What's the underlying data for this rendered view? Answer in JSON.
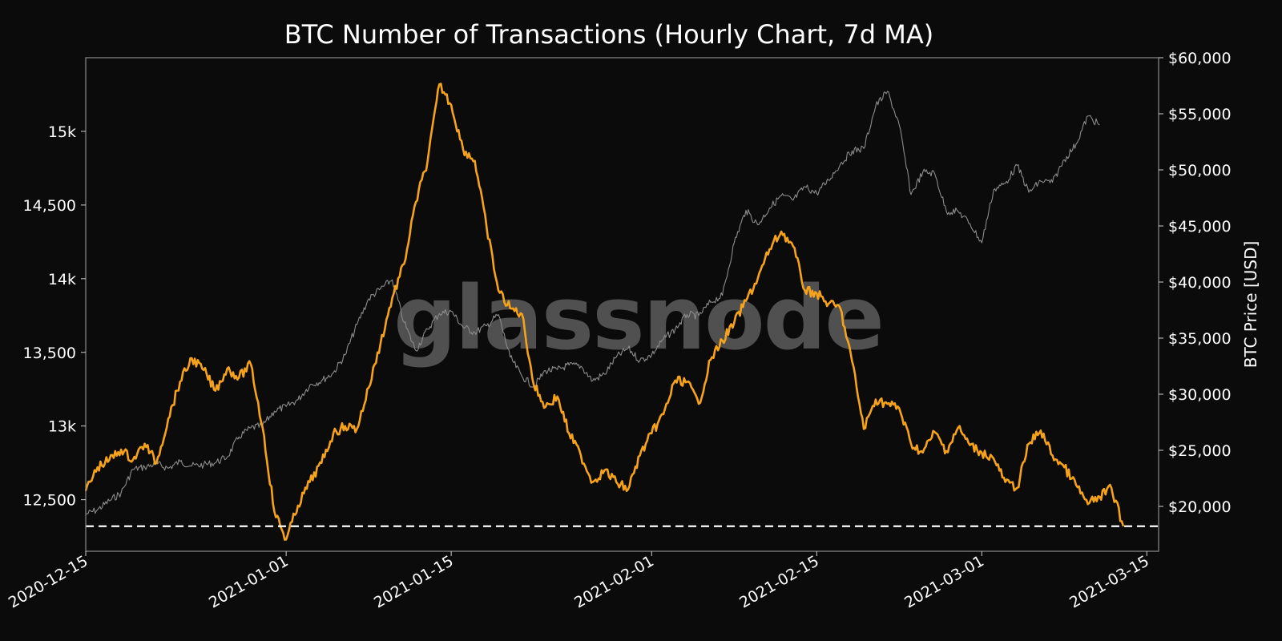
{
  "chart_data": {
    "type": "line",
    "title": "BTC Number of Transactions (Hourly Chart, 7d MA)",
    "watermark": "glassnode",
    "xlabel": "",
    "ylabel_left": "",
    "ylabel_right": "BTC Price [USD]",
    "x_ticks": [
      "2020-12-15",
      "2021-01-01",
      "2021-01-15",
      "2021-02-01",
      "2021-02-15",
      "2021-03-01",
      "2021-03-15"
    ],
    "x_range": [
      "2020-12-15",
      "2021-03-16"
    ],
    "y_left_ticks": [
      {
        "value": 12500,
        "label": "12,500"
      },
      {
        "value": 13000,
        "label": "13k"
      },
      {
        "value": 13500,
        "label": "13,500"
      },
      {
        "value": 14000,
        "label": "14k"
      },
      {
        "value": 14500,
        "label": "14,500"
      },
      {
        "value": 15000,
        "label": "15k"
      }
    ],
    "y_left_range": [
      12150,
      15500
    ],
    "y_right_ticks": [
      {
        "value": 20000,
        "label": "$20,000"
      },
      {
        "value": 25000,
        "label": "$25,000"
      },
      {
        "value": 30000,
        "label": "$30,000"
      },
      {
        "value": 35000,
        "label": "$35,000"
      },
      {
        "value": 40000,
        "label": "$40,000"
      },
      {
        "value": 45000,
        "label": "$45,000"
      },
      {
        "value": 50000,
        "label": "$50,000"
      },
      {
        "value": 55000,
        "label": "$55,000"
      },
      {
        "value": 60000,
        "label": "$60,000"
      }
    ],
    "y_right_range": [
      16000,
      60000
    ],
    "reference_line": {
      "axis": "left",
      "value": 12320,
      "style": "dashed",
      "color": "#ffffff"
    },
    "grid": false,
    "colors": {
      "transactions": "#f7a21b",
      "price": "#8c8c8c",
      "background": "#0b0b0b",
      "frame": "#8c8c8c"
    },
    "series": [
      {
        "axis": "left",
        "color": "#f7a21b",
        "points": [
          [
            "2020-12-15",
            12560
          ],
          [
            "2020-12-16",
            12720
          ],
          [
            "2020-12-17",
            12770
          ],
          [
            "2020-12-18",
            12840
          ],
          [
            "2020-12-19",
            12770
          ],
          [
            "2020-12-20",
            12880
          ],
          [
            "2020-12-21",
            12750
          ],
          [
            "2020-12-22",
            13050
          ],
          [
            "2020-12-23",
            13300
          ],
          [
            "2020-12-24",
            13460
          ],
          [
            "2020-12-25",
            13380
          ],
          [
            "2020-12-26",
            13240
          ],
          [
            "2020-12-27",
            13390
          ],
          [
            "2020-12-28",
            13330
          ],
          [
            "2020-12-29",
            13420
          ],
          [
            "2020-12-30",
            12990
          ],
          [
            "2020-12-31",
            12420
          ],
          [
            "2021-01-01",
            12230
          ],
          [
            "2021-01-02",
            12460
          ],
          [
            "2021-01-03",
            12620
          ],
          [
            "2021-01-04",
            12750
          ],
          [
            "2021-01-05",
            12950
          ],
          [
            "2021-01-06",
            13000
          ],
          [
            "2021-01-07",
            12980
          ],
          [
            "2021-01-08",
            13260
          ],
          [
            "2021-01-09",
            13560
          ],
          [
            "2021-01-10",
            13870
          ],
          [
            "2021-01-11",
            14100
          ],
          [
            "2021-01-12",
            14520
          ],
          [
            "2021-01-13",
            14800
          ],
          [
            "2021-01-14",
            15320
          ],
          [
            "2021-01-15",
            15180
          ],
          [
            "2021-01-16",
            14880
          ],
          [
            "2021-01-17",
            14800
          ],
          [
            "2021-01-18",
            14350
          ],
          [
            "2021-01-19",
            13920
          ],
          [
            "2021-01-20",
            13800
          ],
          [
            "2021-01-21",
            13760
          ],
          [
            "2021-01-22",
            13280
          ],
          [
            "2021-01-23",
            13130
          ],
          [
            "2021-01-24",
            13200
          ],
          [
            "2021-01-25",
            12950
          ],
          [
            "2021-01-26",
            12800
          ],
          [
            "2021-01-27",
            12620
          ],
          [
            "2021-01-28",
            12700
          ],
          [
            "2021-01-29",
            12620
          ],
          [
            "2021-01-30",
            12570
          ],
          [
            "2021-01-31",
            12800
          ],
          [
            "2021-02-01",
            12950
          ],
          [
            "2021-02-02",
            13080
          ],
          [
            "2021-02-03",
            13310
          ],
          [
            "2021-02-04",
            13300
          ],
          [
            "2021-02-05",
            13150
          ],
          [
            "2021-02-06",
            13450
          ],
          [
            "2021-02-07",
            13580
          ],
          [
            "2021-02-08",
            13700
          ],
          [
            "2021-02-09",
            13850
          ],
          [
            "2021-02-10",
            14000
          ],
          [
            "2021-02-11",
            14200
          ],
          [
            "2021-02-12",
            14320
          ],
          [
            "2021-02-13",
            14220
          ],
          [
            "2021-02-14",
            13920
          ],
          [
            "2021-02-15",
            13900
          ],
          [
            "2021-02-16",
            13830
          ],
          [
            "2021-02-17",
            13800
          ],
          [
            "2021-02-18",
            13440
          ],
          [
            "2021-02-19",
            12980
          ],
          [
            "2021-02-20",
            13180
          ],
          [
            "2021-02-21",
            13150
          ],
          [
            "2021-02-22",
            13120
          ],
          [
            "2021-02-23",
            12880
          ],
          [
            "2021-02-24",
            12820
          ],
          [
            "2021-02-25",
            12960
          ],
          [
            "2021-02-26",
            12830
          ],
          [
            "2021-02-27",
            12990
          ],
          [
            "2021-02-28",
            12870
          ],
          [
            "2021-03-01",
            12820
          ],
          [
            "2021-03-02",
            12780
          ],
          [
            "2021-03-03",
            12620
          ],
          [
            "2021-03-04",
            12580
          ],
          [
            "2021-03-05",
            12880
          ],
          [
            "2021-03-06",
            12970
          ],
          [
            "2021-03-07",
            12800
          ],
          [
            "2021-03-08",
            12720
          ],
          [
            "2021-03-09",
            12600
          ],
          [
            "2021-03-10",
            12470
          ],
          [
            "2021-03-11",
            12520
          ],
          [
            "2021-03-12",
            12580
          ],
          [
            "2021-03-13",
            12320
          ]
        ]
      },
      {
        "axis": "right",
        "color": "#8c8c8c",
        "points": [
          [
            "2020-12-15",
            19300
          ],
          [
            "2020-12-16",
            19700
          ],
          [
            "2020-12-17",
            20500
          ],
          [
            "2020-12-18",
            21200
          ],
          [
            "2020-12-19",
            23300
          ],
          [
            "2020-12-20",
            23500
          ],
          [
            "2020-12-21",
            23800
          ],
          [
            "2020-12-22",
            23400
          ],
          [
            "2020-12-23",
            24000
          ],
          [
            "2020-12-24",
            23600
          ],
          [
            "2020-12-25",
            23700
          ],
          [
            "2020-12-26",
            23900
          ],
          [
            "2020-12-27",
            24400
          ],
          [
            "2020-12-28",
            26200
          ],
          [
            "2020-12-29",
            27000
          ],
          [
            "2020-12-30",
            27200
          ],
          [
            "2020-12-31",
            28500
          ],
          [
            "2021-01-01",
            28900
          ],
          [
            "2021-01-02",
            29500
          ],
          [
            "2021-01-03",
            30800
          ],
          [
            "2021-01-04",
            31200
          ],
          [
            "2021-01-05",
            31900
          ],
          [
            "2021-01-06",
            33500
          ],
          [
            "2021-01-07",
            36200
          ],
          [
            "2021-01-08",
            38500
          ],
          [
            "2021-01-09",
            39400
          ],
          [
            "2021-01-10",
            40200
          ],
          [
            "2021-01-11",
            36400
          ],
          [
            "2021-01-12",
            33900
          ],
          [
            "2021-01-13",
            35800
          ],
          [
            "2021-01-14",
            37200
          ],
          [
            "2021-01-15",
            37400
          ],
          [
            "2021-01-16",
            36000
          ],
          [
            "2021-01-17",
            35500
          ],
          [
            "2021-01-18",
            36100
          ],
          [
            "2021-01-19",
            37100
          ],
          [
            "2021-01-20",
            33300
          ],
          [
            "2021-01-21",
            31600
          ],
          [
            "2021-01-22",
            30700
          ],
          [
            "2021-01-23",
            32100
          ],
          [
            "2021-01-24",
            32200
          ],
          [
            "2021-01-25",
            32600
          ],
          [
            "2021-01-26",
            32500
          ],
          [
            "2021-01-27",
            31200
          ],
          [
            "2021-01-28",
            31800
          ],
          [
            "2021-01-29",
            33300
          ],
          [
            "2021-01-30",
            34100
          ],
          [
            "2021-01-31",
            33000
          ],
          [
            "2021-02-01",
            33500
          ],
          [
            "2021-02-02",
            34900
          ],
          [
            "2021-02-03",
            35800
          ],
          [
            "2021-02-04",
            37100
          ],
          [
            "2021-02-05",
            37000
          ],
          [
            "2021-02-06",
            38200
          ],
          [
            "2021-02-07",
            38800
          ],
          [
            "2021-02-08",
            43500
          ],
          [
            "2021-02-09",
            46400
          ],
          [
            "2021-02-10",
            45100
          ],
          [
            "2021-02-11",
            46600
          ],
          [
            "2021-02-12",
            47700
          ],
          [
            "2021-02-13",
            47300
          ],
          [
            "2021-02-14",
            48500
          ],
          [
            "2021-02-15",
            47900
          ],
          [
            "2021-02-16",
            49100
          ],
          [
            "2021-02-17",
            50500
          ],
          [
            "2021-02-18",
            51700
          ],
          [
            "2021-02-19",
            51900
          ],
          [
            "2021-02-20",
            55700
          ],
          [
            "2021-02-21",
            57000
          ],
          [
            "2021-02-22",
            54000
          ],
          [
            "2021-02-23",
            47800
          ],
          [
            "2021-02-24",
            49800
          ],
          [
            "2021-02-25",
            49700
          ],
          [
            "2021-02-26",
            46300
          ],
          [
            "2021-02-27",
            46300
          ],
          [
            "2021-02-28",
            45200
          ],
          [
            "2021-03-01",
            43500
          ],
          [
            "2021-03-02",
            48200
          ],
          [
            "2021-03-03",
            48800
          ],
          [
            "2021-03-04",
            50400
          ],
          [
            "2021-03-05",
            48000
          ],
          [
            "2021-03-06",
            49000
          ],
          [
            "2021-03-07",
            48900
          ],
          [
            "2021-03-08",
            50900
          ],
          [
            "2021-03-09",
            52300
          ],
          [
            "2021-03-10",
            54800
          ],
          [
            "2021-03-11",
            54000
          ]
        ]
      }
    ]
  }
}
